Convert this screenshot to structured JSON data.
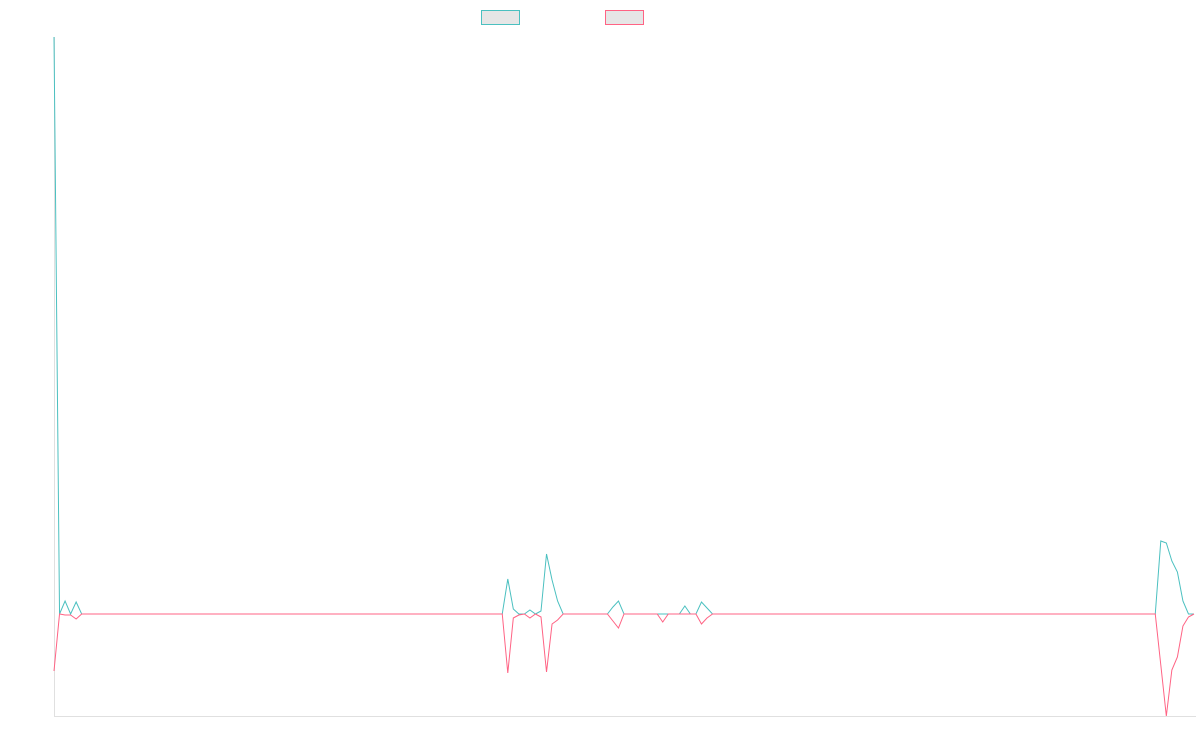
{
  "chart_data": {
    "type": "line",
    "title": "",
    "xlabel": "",
    "ylabel": "",
    "ylim": [
      -10.2,
      57.7
    ],
    "grid": false,
    "legend_position": "top",
    "series": [
      {
        "color": "#4bc0c0",
        "legend_fill": "#e6e6e6",
        "values": [
          57.7,
          0,
          1.3,
          0,
          1.2,
          0,
          0,
          0,
          0,
          0,
          0,
          0,
          0,
          0,
          0,
          0,
          0,
          0,
          0,
          0,
          0,
          0,
          0,
          0,
          0,
          0,
          0,
          0,
          0,
          0,
          0,
          0,
          0,
          0,
          0,
          0,
          0,
          0,
          0,
          0,
          0,
          0,
          0,
          0,
          0,
          0,
          0,
          0,
          0,
          0,
          0,
          0,
          0,
          0,
          0,
          0,
          0,
          0,
          0,
          0,
          0,
          0,
          0,
          0,
          0,
          0,
          0,
          0,
          0,
          0,
          0,
          0,
          0,
          0,
          0,
          0,
          0,
          0,
          0,
          0,
          0,
          0,
          3.5,
          0.5,
          0,
          0,
          0.4,
          0,
          0.3,
          6.0,
          3.4,
          1.3,
          0,
          0,
          0,
          0,
          0,
          0,
          0,
          0,
          0,
          0.7,
          1.3,
          0,
          0,
          0,
          0,
          0,
          0,
          0,
          0,
          0,
          0,
          0,
          0.8,
          0,
          0,
          1.2,
          0.6,
          0,
          0,
          0,
          0,
          0,
          0,
          0,
          0,
          0,
          0,
          0,
          0,
          0,
          0,
          0,
          0,
          0,
          0,
          0,
          0,
          0,
          0,
          0,
          0,
          0,
          0,
          0,
          0,
          0,
          0,
          0,
          0,
          0,
          0,
          0,
          0,
          0,
          0,
          0,
          0,
          0,
          0,
          0,
          0,
          0,
          0,
          0,
          0,
          0,
          0,
          0,
          0,
          0,
          0,
          0,
          0,
          0,
          0,
          0,
          0,
          0,
          0,
          0,
          0,
          0,
          0,
          0,
          0,
          0,
          0,
          0,
          0,
          0,
          0,
          0,
          0,
          0,
          0,
          0,
          0,
          0,
          7.3,
          7.1,
          5.3,
          4.2,
          1.3,
          0,
          0
        ]
      },
      {
        "color": "#ff6384",
        "legend_fill": "#e6e6e6",
        "values": [
          -5.7,
          0,
          -0.1,
          -0.1,
          -0.5,
          0,
          0,
          0,
          0,
          0,
          0,
          0,
          0,
          0,
          0,
          0,
          0,
          0,
          0,
          0,
          0,
          0,
          0,
          0,
          0,
          0,
          0,
          0,
          0,
          0,
          0,
          0,
          0,
          0,
          0,
          0,
          0,
          0,
          0,
          0,
          0,
          0,
          0,
          0,
          0,
          0,
          0,
          0,
          0,
          0,
          0,
          0,
          0,
          0,
          0,
          0,
          0,
          0,
          0,
          0,
          0,
          0,
          0,
          0,
          0,
          0,
          0,
          0,
          0,
          0,
          0,
          0,
          0,
          0,
          0,
          0,
          0,
          0,
          0,
          0,
          0,
          0,
          -5.9,
          -0.4,
          -0.1,
          0,
          -0.4,
          0,
          -0.3,
          -5.8,
          -1.0,
          -0.6,
          0,
          0,
          0,
          0,
          0,
          0,
          0,
          0,
          0,
          -0.7,
          -1.4,
          0,
          0,
          0,
          0,
          0,
          0,
          0,
          -0.8,
          0,
          0,
          0,
          0,
          0,
          0,
          -1.0,
          -0.4,
          0,
          0,
          0,
          0,
          0,
          0,
          0,
          0,
          0,
          0,
          0,
          0,
          0,
          0,
          0,
          0,
          0,
          0,
          0,
          0,
          0,
          0,
          0,
          0,
          0,
          0,
          0,
          0,
          0,
          0,
          0,
          0,
          0,
          0,
          0,
          0,
          0,
          0,
          0,
          0,
          0,
          0,
          0,
          0,
          0,
          0,
          0,
          0,
          0,
          0,
          0,
          0,
          0,
          0,
          0,
          0,
          0,
          0,
          0,
          0,
          0,
          0,
          0,
          0,
          0,
          0,
          0,
          0,
          0,
          0,
          0,
          0,
          0,
          0,
          0,
          0,
          0,
          0,
          0,
          0,
          0,
          -5.1,
          -10.2,
          -5.6,
          -4.3,
          -1.2,
          -0.3,
          0
        ]
      }
    ]
  }
}
